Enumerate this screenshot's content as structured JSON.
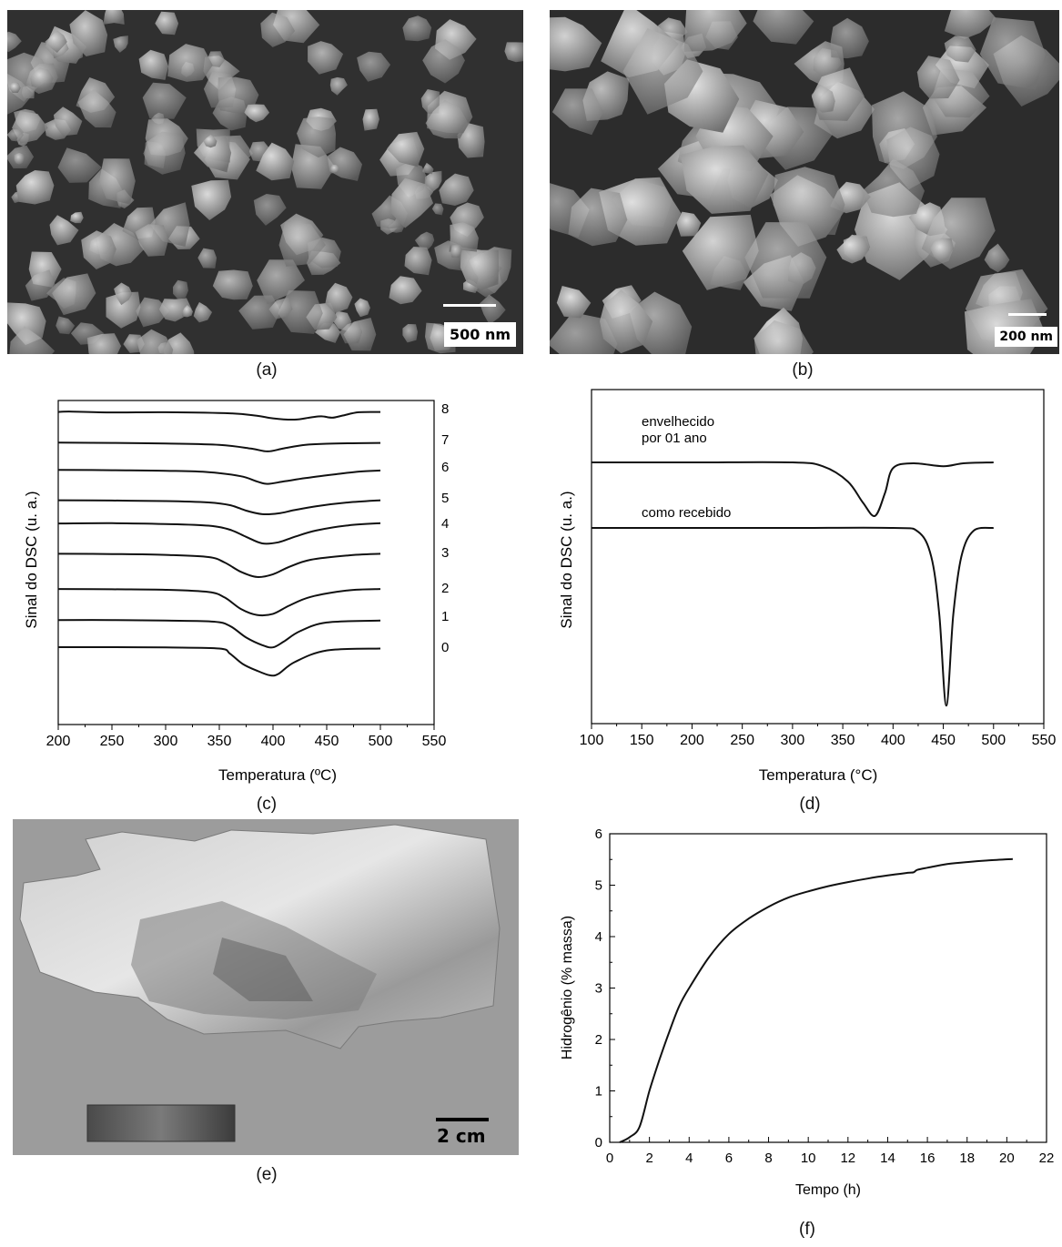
{
  "panels": {
    "a": {
      "caption": "(a)",
      "scale_label": "500 nm"
    },
    "b": {
      "caption": "(b)",
      "scale_label": "200 nm"
    },
    "c": {
      "caption": "(c)"
    },
    "d": {
      "caption": "(d)"
    },
    "e": {
      "caption": "(e)",
      "scale_label": "2 cm"
    },
    "f": {
      "caption": "(f)"
    }
  },
  "chart_data": [
    {
      "panel": "c",
      "type": "line",
      "xlabel": "Temperatura (ºC)",
      "ylabel": "Sinal do DSC (u. a.)",
      "xlim": [
        200,
        550
      ],
      "xticks": [
        200,
        250,
        300,
        350,
        400,
        450,
        500,
        550
      ],
      "series": [
        {
          "name": "8",
          "x": [
            200,
            210,
            250,
            300,
            360,
            385,
            400,
            420,
            435,
            445,
            455,
            465,
            480,
            500
          ],
          "y": [
            0.2,
            0.05,
            0.38,
            0.3,
            0.7,
            1.6,
            2.55,
            3.0,
            2.2,
            1.8,
            2.3,
            1.5,
            0.3,
            0.2
          ]
        },
        {
          "name": "7",
          "x": [
            200,
            250,
            300,
            350,
            380,
            395,
            410,
            430,
            450,
            480,
            500
          ],
          "y": [
            0.1,
            0.2,
            0.4,
            0.9,
            2.3,
            3.3,
            2.2,
            0.9,
            0.5,
            0.3,
            0.2
          ]
        },
        {
          "name": "6",
          "x": [
            200,
            250,
            300,
            340,
            370,
            385,
            395,
            410,
            430,
            460,
            480,
            500
          ],
          "y": [
            0.1,
            0.2,
            0.4,
            0.9,
            2.4,
            4.3,
            5.2,
            4.3,
            3.1,
            1.6,
            0.7,
            0.3
          ]
        },
        {
          "name": "5",
          "x": [
            200,
            250,
            300,
            340,
            360,
            375,
            390,
            405,
            420,
            440,
            470,
            500
          ],
          "y": [
            0.2,
            0.3,
            0.5,
            1.0,
            2.0,
            4.0,
            5.3,
            5.0,
            3.8,
            2.4,
            1.0,
            0.2
          ]
        },
        {
          "name": "4",
          "x": [
            200,
            250,
            300,
            340,
            360,
            375,
            390,
            405,
            420,
            440,
            470,
            500
          ],
          "y": [
            0.7,
            0.6,
            0.9,
            1.5,
            3.0,
            5.6,
            8.0,
            7.6,
            5.6,
            3.3,
            1.4,
            0.6
          ]
        },
        {
          "name": "3",
          "x": [
            200,
            250,
            300,
            340,
            355,
            370,
            385,
            400,
            415,
            435,
            470,
            500
          ],
          "y": [
            0.8,
            0.9,
            1.2,
            2.0,
            4.0,
            7.4,
            9.3,
            8.3,
            5.6,
            3.0,
            1.4,
            0.8
          ]
        },
        {
          "name": "2",
          "x": [
            200,
            250,
            300,
            340,
            355,
            370,
            385,
            400,
            415,
            435,
            470,
            500
          ],
          "y": [
            0.7,
            0.8,
            1.0,
            1.8,
            3.8,
            8.0,
            10.2,
            9.8,
            6.8,
            3.6,
            1.2,
            0.7
          ]
        },
        {
          "name": "1",
          "x": [
            200,
            250,
            300,
            345,
            360,
            375,
            390,
            400,
            410,
            425,
            450,
            500
          ],
          "y": [
            0.4,
            0.4,
            0.6,
            1.0,
            2.6,
            6.8,
            9.6,
            10.4,
            8.3,
            4.5,
            1.3,
            0.6
          ]
        },
        {
          "name": "0",
          "x": [
            200,
            250,
            300,
            350,
            360,
            372,
            385,
            397,
            405,
            420,
            450,
            500
          ],
          "y": [
            0.0,
            0.0,
            0.1,
            0.5,
            2.4,
            6.2,
            8.6,
            10.3,
            9.8,
            5.5,
            1.2,
            0.5
          ]
        }
      ]
    },
    {
      "panel": "d",
      "type": "line",
      "xlabel": "Temperatura (°C)",
      "ylabel": "Sinal do DSC (u. a.)",
      "xlim": [
        100,
        550
      ],
      "xticks": [
        100,
        150,
        200,
        250,
        300,
        350,
        400,
        450,
        500,
        550
      ],
      "series": [
        {
          "name": "envelhecido\npor 01 ano",
          "x": [
            100,
            200,
            300,
            330,
            355,
            370,
            382,
            392,
            400,
            420,
            450,
            470,
            500
          ],
          "y": [
            0,
            0,
            0,
            0.4,
            2.0,
            4.2,
            5.6,
            3.2,
            0.6,
            0.1,
            0.4,
            0.1,
            0
          ]
        },
        {
          "name": "como recebido",
          "x": [
            100,
            200,
            300,
            400,
            425,
            438,
            446,
            453,
            460,
            468,
            480,
            500
          ],
          "y": [
            0,
            0,
            0,
            0,
            0.4,
            3.0,
            9.0,
            18.6,
            9.0,
            3.0,
            0.3,
            0
          ]
        }
      ]
    },
    {
      "panel": "f",
      "type": "line",
      "xlabel": "Tempo (h)",
      "ylabel": "Hidrogênio (% massa)",
      "xlim": [
        0,
        22
      ],
      "ylim": [
        0,
        6
      ],
      "xticks": [
        0,
        2,
        4,
        6,
        8,
        10,
        12,
        14,
        16,
        18,
        20,
        22
      ],
      "yticks": [
        0,
        1,
        2,
        3,
        4,
        5,
        6
      ],
      "series": [
        {
          "name": "",
          "x": [
            0.5,
            1.0,
            1.5,
            2.0,
            2.5,
            3.0,
            3.5,
            4.0,
            5.0,
            6.0,
            7.0,
            8.0,
            9.0,
            10.0,
            11.0,
            12.0,
            13.0,
            14.0,
            15.0,
            15.3,
            15.5,
            16.0,
            17.0,
            18.0,
            19.0,
            20.3
          ],
          "y": [
            0,
            0.1,
            0.3,
            1.0,
            1.6,
            2.15,
            2.65,
            3.0,
            3.6,
            4.05,
            4.35,
            4.58,
            4.76,
            4.88,
            4.98,
            5.06,
            5.13,
            5.19,
            5.24,
            5.25,
            5.3,
            5.34,
            5.41,
            5.45,
            5.48,
            5.51
          ]
        }
      ]
    }
  ]
}
